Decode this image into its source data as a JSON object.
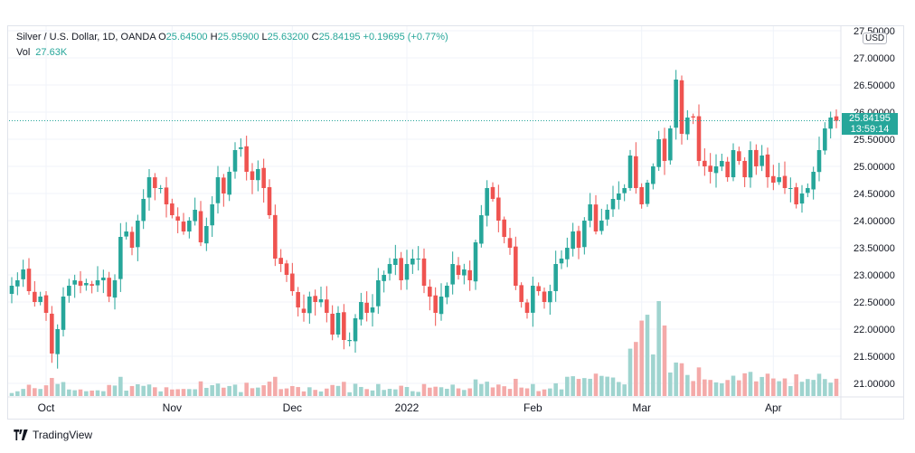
{
  "legend": {
    "symbol": "Silver / U.S. Dollar, 1D, OANDA",
    "o_label": "O",
    "o_value": "25.64500",
    "h_label": "H",
    "h_value": "25.95900",
    "l_label": "L",
    "l_value": "25.63200",
    "c_label": "C",
    "c_value": "25.84195",
    "change": "+0.19695 (+0.77%)",
    "vol_label": "Vol",
    "vol_value": "27.63K"
  },
  "currency": "USD",
  "last_price_label": "25.84195",
  "countdown": "13:59:14",
  "branding": "TradingView",
  "colors": {
    "up": "#26a69a",
    "down": "#ef5350",
    "up_vol": "#9fd4cf",
    "down_vol": "#f4aaa9",
    "grid": "#f0f3fa",
    "axis_text": "#131722"
  },
  "chart_data": {
    "type": "candlestick",
    "title": "Silver / U.S. Dollar, 1D, OANDA",
    "last_price": 25.84195,
    "ylim": [
      20.9,
      27.5
    ],
    "y_ticks": [
      "27.50000",
      "27.00000",
      "26.50000",
      "26.00000",
      "25.50000",
      "25.00000",
      "24.50000",
      "24.00000",
      "23.50000",
      "23.00000",
      "22.50000",
      "22.00000",
      "21.50000",
      "21.00000"
    ],
    "x_ticks": [
      {
        "label": "Oct",
        "index": 6
      },
      {
        "label": "Nov",
        "index": 28
      },
      {
        "label": "Dec",
        "index": 49
      },
      {
        "label": "2022",
        "index": 69
      },
      {
        "label": "Feb",
        "index": 91
      },
      {
        "label": "Mar",
        "index": 110
      },
      {
        "label": "Apr",
        "index": 133
      }
    ],
    "closes": [
      22.8,
      22.9,
      23.1,
      22.7,
      22.5,
      22.6,
      22.3,
      21.55,
      22.0,
      22.6,
      22.8,
      22.9,
      22.8,
      22.85,
      22.8,
      22.9,
      22.95,
      22.6,
      22.9,
      23.7,
      23.8,
      23.5,
      24.0,
      24.4,
      24.8,
      24.6,
      24.6,
      24.3,
      24.1,
      24.0,
      23.8,
      24.0,
      24.2,
      23.6,
      23.9,
      24.3,
      24.8,
      24.5,
      24.9,
      25.3,
      25.35,
      24.9,
      24.75,
      24.95,
      24.6,
      24.1,
      23.3,
      23.2,
      23.0,
      22.7,
      22.4,
      22.3,
      22.6,
      22.5,
      22.55,
      22.3,
      21.9,
      22.3,
      21.8,
      21.8,
      22.2,
      22.5,
      22.3,
      22.4,
      22.9,
      23.0,
      23.2,
      23.3,
      22.9,
      23.2,
      23.3,
      23.3,
      22.8,
      22.6,
      22.3,
      22.6,
      22.8,
      23.2,
      23.0,
      23.1,
      22.9,
      23.6,
      24.1,
      24.6,
      24.4,
      24.0,
      23.7,
      23.5,
      22.8,
      22.5,
      22.3,
      22.8,
      22.7,
      22.5,
      22.7,
      23.2,
      23.3,
      23.5,
      23.8,
      23.5,
      24.0,
      24.3,
      23.8,
      24.0,
      24.2,
      24.4,
      24.5,
      24.6,
      25.2,
      24.6,
      24.3,
      24.7,
      25.0,
      25.5,
      25.1,
      25.7,
      26.6,
      25.6,
      25.9,
      25.9,
      25.1,
      25.0,
      24.9,
      25.0,
      25.1,
      24.8,
      25.3,
      25.1,
      24.8,
      25.3,
      25.0,
      25.2,
      24.8,
      24.7,
      24.8,
      24.6,
      24.6,
      24.3,
      24.5,
      24.6,
      24.9,
      25.3,
      25.7,
      25.9,
      25.84
    ]
  }
}
